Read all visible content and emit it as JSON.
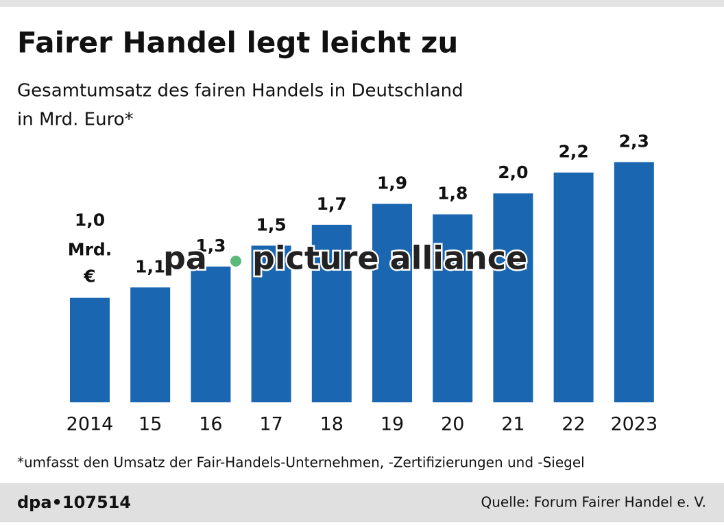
{
  "chart_data": {
    "type": "bar",
    "title": "Fairer Handel legt leicht zu",
    "subtitle": [
      "Gesamtumsatz des fairen Handels in Deutschland",
      "in Mrd. Euro*"
    ],
    "categories": [
      "2014",
      "15",
      "16",
      "17",
      "18",
      "19",
      "20",
      "21",
      "22",
      "2023"
    ],
    "values": [
      1.0,
      1.1,
      1.3,
      1.5,
      1.7,
      1.9,
      1.8,
      2.0,
      2.2,
      2.3
    ],
    "value_labels": [
      "1,0",
      "1,1",
      "1,3",
      "1,5",
      "1,7",
      "1,9",
      "1,8",
      "2,0",
      "2,2",
      "2,3"
    ],
    "value_label_unit": [
      "Mrd.",
      "€"
    ],
    "color": "#1a66b0",
    "ylim": [
      0,
      2.5
    ],
    "watermark": [
      "pa",
      "picture alliance"
    ],
    "footnote": "*umfasst den Umsatz der Fair-Handels-Unternehmen, -Zertifizierungen und -Siegel",
    "graphic_id": "dpa•107514",
    "source": "Quelle: Forum Fairer Handel e. V."
  }
}
